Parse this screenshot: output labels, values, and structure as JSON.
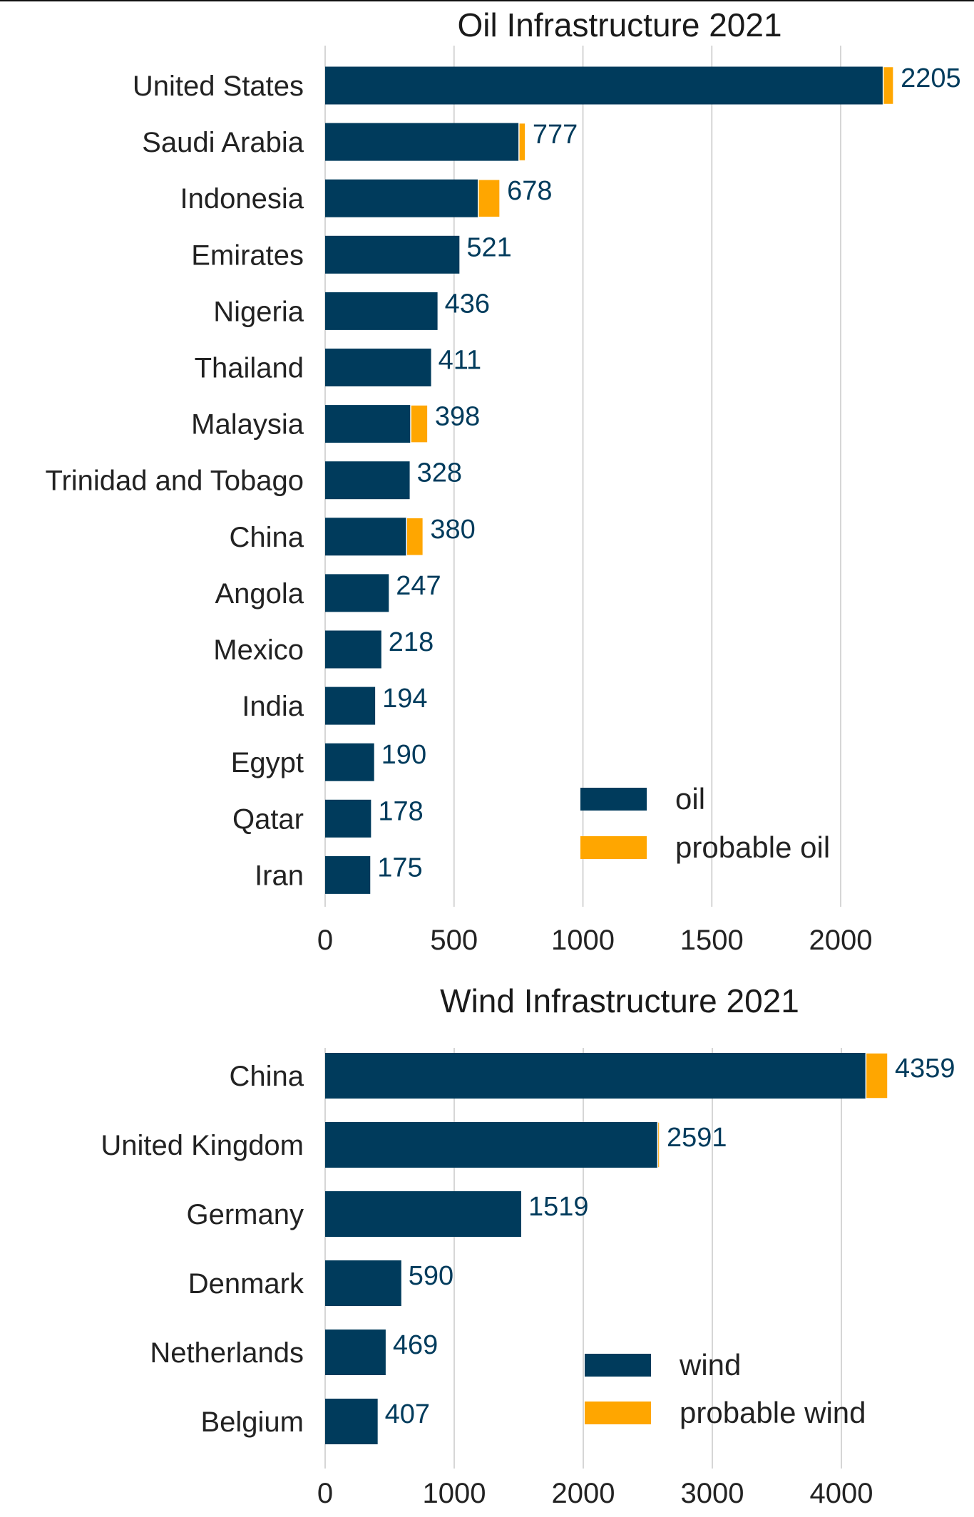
{
  "colors": {
    "oil": "#003b5c",
    "probable": "#ffa600",
    "grid": "#d6d6d6",
    "label": "#222222",
    "value": "#003b5c"
  },
  "chart_data": [
    {
      "type": "bar",
      "orientation": "horizontal",
      "stacked": true,
      "title": "Oil Infrastructure 2021",
      "xlabel": "",
      "ylabel": "",
      "xlim": [
        0,
        2290
      ],
      "xticks": [
        0,
        500,
        1000,
        1500,
        2000
      ],
      "grid": true,
      "legend_position": "lower-right",
      "categories": [
        "United States",
        "Saudi Arabia",
        "Indonesia",
        "Emirates",
        "Nigeria",
        "Thailand",
        "Malaysia",
        "Trinidad and Tobago",
        "China",
        "Angola",
        "Mexico",
        "India",
        "Egypt",
        "Qatar",
        "Iran"
      ],
      "series": [
        {
          "name": "oil",
          "color": "#003b5c",
          "values": [
            2165,
            752,
            594,
            521,
            436,
            411,
            332,
            328,
            316,
            247,
            218,
            194,
            190,
            178,
            175
          ]
        },
        {
          "name": "probable oil",
          "color": "#ffa600",
          "values": [
            40,
            25,
            84,
            0,
            0,
            0,
            66,
            0,
            64,
            0,
            0,
            0,
            0,
            0,
            0
          ]
        }
      ],
      "totals": [
        "2205",
        "777",
        "678",
        "521",
        "436",
        "411",
        "398",
        "328",
        "380",
        "247",
        "218",
        "194",
        "190",
        "178",
        "175"
      ]
    },
    {
      "type": "bar",
      "orientation": "horizontal",
      "stacked": true,
      "title": "Wind Infrastructure 2021",
      "xlabel": "",
      "ylabel": "",
      "xlim": [
        0,
        4580
      ],
      "xticks": [
        0,
        1000,
        2000,
        3000,
        4000
      ],
      "grid": true,
      "legend_position": "lower-right",
      "categories": [
        "China",
        "United Kingdom",
        "Germany",
        "Denmark",
        "Netherlands",
        "Belgium"
      ],
      "series": [
        {
          "name": "wind",
          "color": "#003b5c",
          "values": [
            4190,
            2577,
            1519,
            590,
            469,
            407
          ]
        },
        {
          "name": "probable wind",
          "color": "#ffa600",
          "values": [
            169,
            14,
            0,
            0,
            0,
            0
          ]
        }
      ],
      "totals": [
        "4359",
        "2591",
        "1519",
        "590",
        "469",
        "407"
      ]
    }
  ]
}
